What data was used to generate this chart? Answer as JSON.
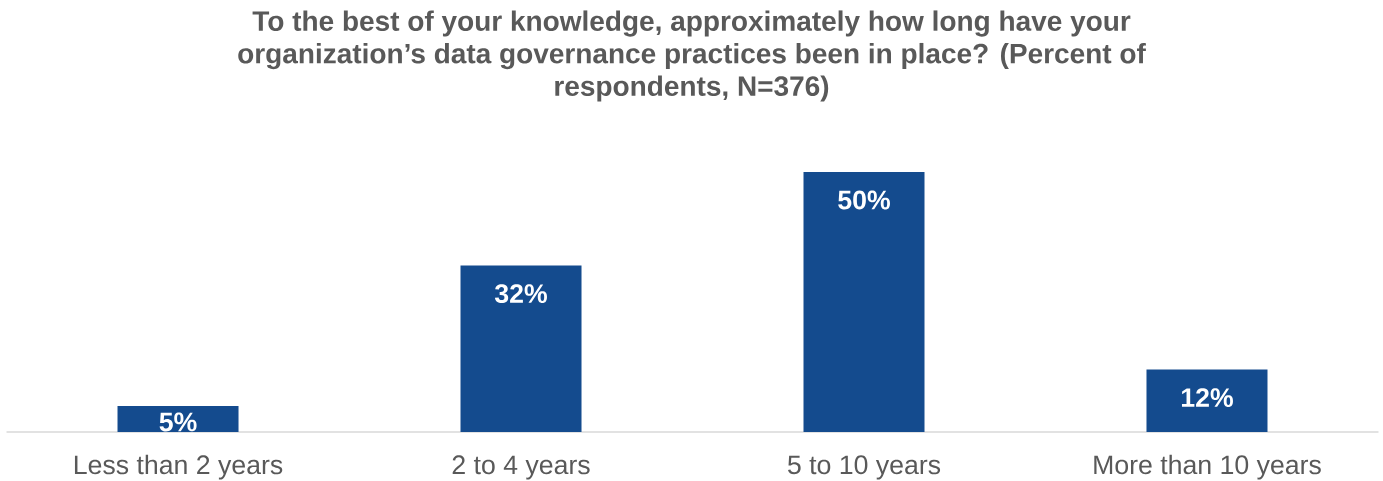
{
  "chart_data": {
    "type": "bar",
    "title": "To the best of your knowledge, approximately how long have your organization’s data governance practices been in place? (Percent of respondents, N=376)",
    "categories": [
      "Less than 2 years",
      "2 to 4 years",
      "5 to 10 years",
      "More than 10 years"
    ],
    "values": [
      5,
      32,
      50,
      12
    ],
    "value_labels": [
      "5%",
      "32%",
      "50%",
      "12%"
    ],
    "color": "#144b8e",
    "ylim": [
      0,
      50
    ]
  }
}
